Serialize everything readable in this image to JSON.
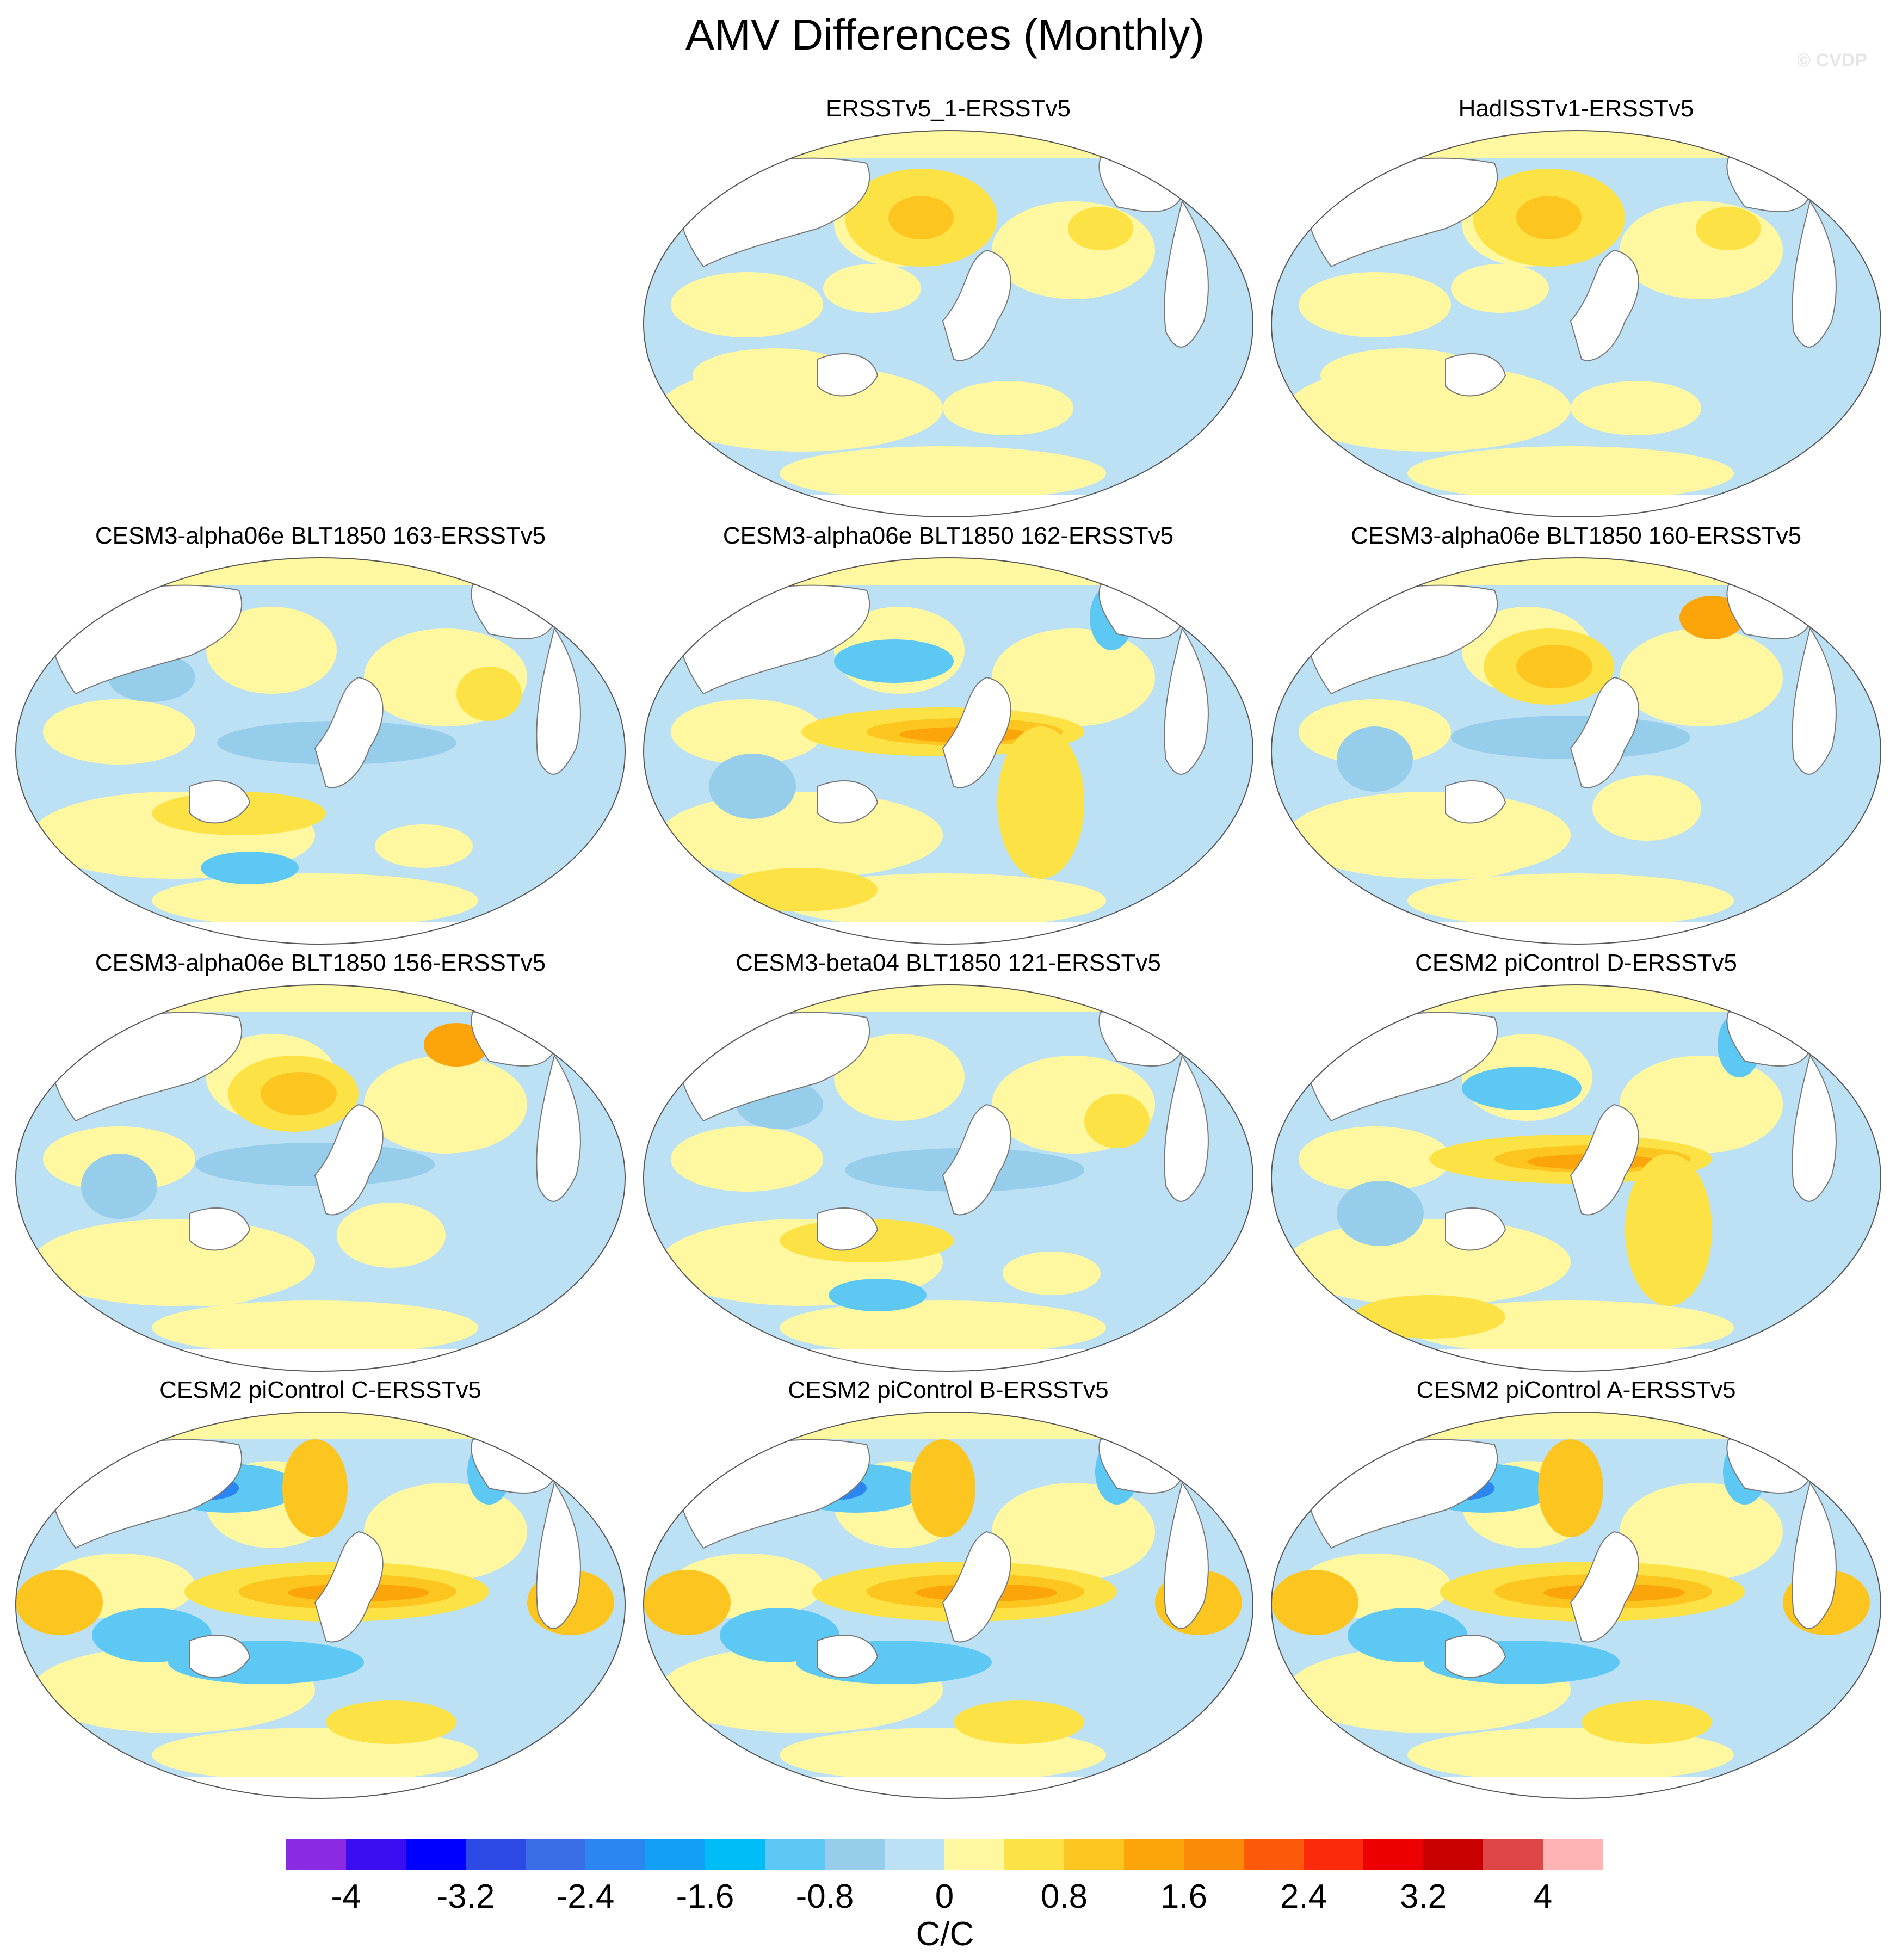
{
  "figure": {
    "title": "AMV Differences (Monthly)",
    "watermark": "© CVDP"
  },
  "panels": [
    {
      "title": "ERSSTv5_1-ERSSTv5",
      "pattern": "obs"
    },
    {
      "title": "HadISSTv1-ERSSTv5",
      "pattern": "obs"
    },
    {
      "title": "CESM3-alpha06e BLT1850 163-ERSSTv5",
      "pattern": "model_neg"
    },
    {
      "title": "CESM3-alpha06e BLT1850 162-ERSSTv5",
      "pattern": "model_pos"
    },
    {
      "title": "CESM3-alpha06e BLT1850 160-ERSSTv5",
      "pattern": "model_mixed"
    },
    {
      "title": "CESM3-alpha06e BLT1850 156-ERSSTv5",
      "pattern": "model_mixed"
    },
    {
      "title": "CESM3-beta04 BLT1850 121-ERSSTv5",
      "pattern": "model_neg"
    },
    {
      "title": "CESM2 piControl D-ERSSTv5",
      "pattern": "model_pos"
    },
    {
      "title": "CESM2 piControl C-ERSSTv5",
      "pattern": "model_strong"
    },
    {
      "title": "CESM2 piControl B-ERSSTv5",
      "pattern": "model_strong"
    },
    {
      "title": "CESM2 piControl A-ERSSTv5",
      "pattern": "model_strong"
    }
  ],
  "colorbar": {
    "units": "C/C",
    "levels": [
      -4.4,
      -4,
      -3.6,
      -3.2,
      -2.8,
      -2.4,
      -2,
      -1.6,
      -1.2,
      -0.8,
      -0.4,
      0,
      0.4,
      0.8,
      1.2,
      1.6,
      2,
      2.4,
      2.8,
      3.2,
      3.6,
      4,
      4.4
    ],
    "colors": [
      "#8a2be2",
      "#3a0ef0",
      "#0000ff",
      "#2d4ae4",
      "#3a6ee6",
      "#2b86f2",
      "#139ef8",
      "#00bdf8",
      "#5ec8f5",
      "#96cdea",
      "#bce0f4",
      "#fff8a0",
      "#fde246",
      "#fcc520",
      "#fba50a",
      "#fb8a08",
      "#fc5a0a",
      "#fb2a0a",
      "#ed0000",
      "#c80000",
      "#dc4646",
      "#ffb4b4"
    ],
    "tick_labels": [
      "-4",
      "-3.2",
      "-2.4",
      "-1.6",
      "-0.8",
      "0",
      "0.8",
      "1.6",
      "2.4",
      "3.2",
      "4"
    ]
  }
}
